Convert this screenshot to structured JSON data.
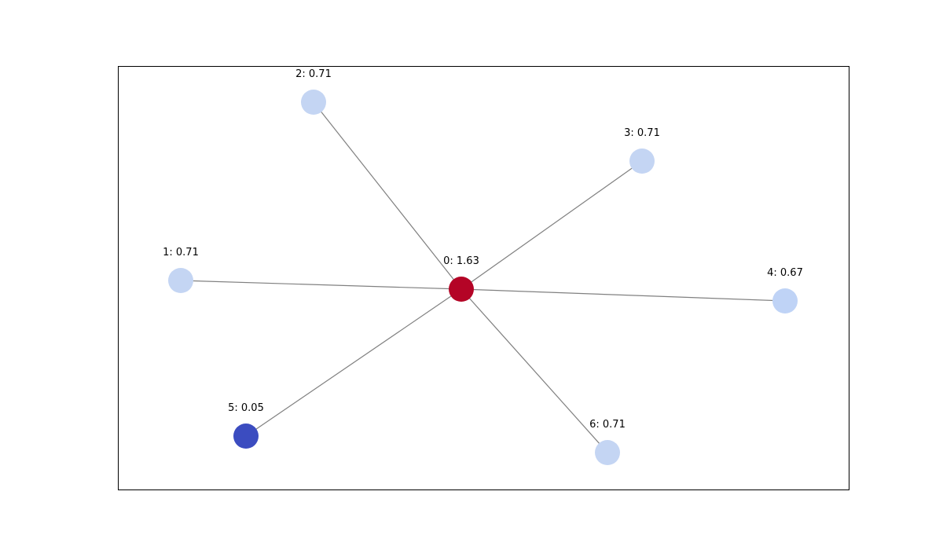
{
  "graph": {
    "edge_color": "#808080",
    "frame_color": "#000000",
    "hub": "0",
    "nodes": [
      {
        "id": "0",
        "label": "0: 1.63",
        "value": 1.63,
        "color": "#b40426"
      },
      {
        "id": "1",
        "label": "1: 0.71",
        "value": 0.71,
        "color": "#c4d5f3"
      },
      {
        "id": "2",
        "label": "2: 0.71",
        "value": 0.71,
        "color": "#c4d5f3"
      },
      {
        "id": "3",
        "label": "3: 0.71",
        "value": 0.71,
        "color": "#c4d5f3"
      },
      {
        "id": "4",
        "label": "4: 0.67",
        "value": 0.67,
        "color": "#bfd3f6"
      },
      {
        "id": "5",
        "label": "5: 0.05",
        "value": 0.05,
        "color": "#3b4cc0"
      },
      {
        "id": "6",
        "label": "6: 0.71",
        "value": 0.71,
        "color": "#c4d5f3"
      }
    ],
    "edges": [
      {
        "source": "0",
        "target": "1"
      },
      {
        "source": "0",
        "target": "2"
      },
      {
        "source": "0",
        "target": "3"
      },
      {
        "source": "0",
        "target": "4"
      },
      {
        "source": "0",
        "target": "5"
      },
      {
        "source": "0",
        "target": "6"
      }
    ]
  }
}
